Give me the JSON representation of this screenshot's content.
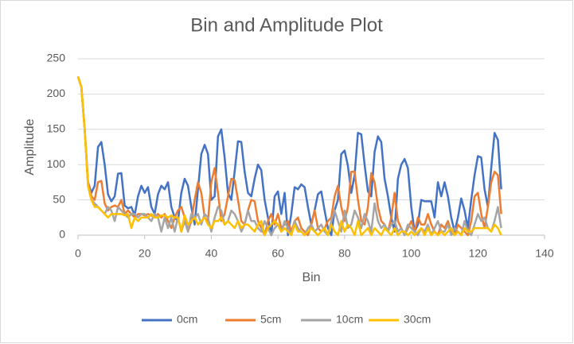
{
  "chart_data": {
    "type": "line",
    "title": "Bin and Amplitude Plot",
    "x_label": "Bin",
    "y_label": "Amplitude",
    "x": [
      0,
      1,
      2,
      3,
      4,
      5,
      6,
      7,
      8,
      9,
      10,
      11,
      12,
      13,
      14,
      15,
      16,
      17,
      18,
      19,
      20,
      21,
      22,
      23,
      24,
      25,
      26,
      27,
      28,
      29,
      30,
      31,
      32,
      33,
      34,
      35,
      36,
      37,
      38,
      39,
      40,
      41,
      42,
      43,
      44,
      45,
      46,
      47,
      48,
      49,
      50,
      51,
      52,
      53,
      54,
      55,
      56,
      57,
      58,
      59,
      60,
      61,
      62,
      63,
      64,
      65,
      66,
      67,
      68,
      69,
      70,
      71,
      72,
      73,
      74,
      75,
      76,
      77,
      78,
      79,
      80,
      81,
      82,
      83,
      84,
      85,
      86,
      87,
      88,
      89,
      90,
      91,
      92,
      93,
      94,
      95,
      96,
      97,
      98,
      99,
      100,
      101,
      102,
      103,
      104,
      105,
      106,
      107,
      108,
      109,
      110,
      111,
      112,
      113,
      114,
      115,
      116,
      117,
      118,
      119,
      120,
      121,
      122,
      123,
      124,
      125,
      126,
      127
    ],
    "series": [
      {
        "name": "0cm",
        "color": "#4472C4",
        "values": [
          225,
          210,
          150,
          75,
          60,
          70,
          125,
          132,
          100,
          58,
          48,
          55,
          87,
          88,
          42,
          38,
          40,
          28,
          55,
          70,
          60,
          68,
          40,
          30,
          58,
          70,
          65,
          75,
          40,
          25,
          20,
          60,
          80,
          70,
          40,
          15,
          65,
          115,
          128,
          115,
          50,
          55,
          140,
          150,
          110,
          60,
          50,
          90,
          133,
          132,
          90,
          60,
          55,
          80,
          100,
          92,
          50,
          25,
          0,
          55,
          62,
          30,
          60,
          0,
          30,
          68,
          65,
          72,
          68,
          40,
          15,
          35,
          58,
          62,
          35,
          10,
          0,
          35,
          50,
          115,
          120,
          98,
          60,
          85,
          145,
          143,
          100,
          62,
          55,
          118,
          140,
          132,
          80,
          55,
          25,
          5,
          80,
          100,
          108,
          95,
          40,
          5,
          15,
          50,
          48,
          48,
          48,
          25,
          75,
          55,
          75,
          55,
          25,
          5,
          25,
          52,
          35,
          10,
          50,
          85,
          112,
          110,
          65,
          40,
          95,
          145,
          135,
          65
        ]
      },
      {
        "name": "5cm",
        "color": "#ED7D31",
        "values": [
          225,
          210,
          150,
          75,
          55,
          50,
          75,
          77,
          45,
          35,
          40,
          42,
          40,
          50,
          30,
          35,
          30,
          25,
          30,
          30,
          28,
          30,
          28,
          25,
          30,
          25,
          30,
          20,
          10,
          25,
          35,
          40,
          25,
          5,
          20,
          50,
          75,
          60,
          25,
          20,
          75,
          95,
          60,
          20,
          30,
          55,
          80,
          78,
          50,
          20,
          15,
          35,
          50,
          48,
          20,
          10,
          0,
          20,
          30,
          15,
          30,
          10,
          15,
          20,
          5,
          20,
          25,
          10,
          5,
          0,
          15,
          35,
          10,
          5,
          10,
          20,
          25,
          55,
          70,
          40,
          20,
          40,
          90,
          90,
          50,
          20,
          15,
          40,
          88,
          75,
          40,
          20,
          15,
          5,
          25,
          60,
          20,
          10,
          0,
          10,
          20,
          5,
          25,
          15,
          15,
          30,
          15,
          5,
          0,
          15,
          10,
          20,
          5,
          0,
          15,
          10,
          5,
          0,
          20,
          55,
          60,
          30,
          10,
          40,
          75,
          90,
          85,
          30
        ]
      },
      {
        "name": "10cm",
        "color": "#A5A5A5",
        "values": [
          225,
          210,
          150,
          70,
          50,
          45,
          40,
          35,
          30,
          40,
          35,
          20,
          40,
          35,
          30,
          25,
          30,
          30,
          25,
          30,
          30,
          25,
          20,
          30,
          25,
          5,
          25,
          10,
          25,
          5,
          25,
          5,
          20,
          5,
          30,
          25,
          30,
          15,
          30,
          25,
          5,
          25,
          40,
          35,
          15,
          20,
          35,
          30,
          20,
          5,
          15,
          35,
          20,
          20,
          10,
          5,
          20,
          10,
          0,
          10,
          15,
          5,
          20,
          10,
          0,
          20,
          10,
          5,
          0,
          10,
          15,
          5,
          10,
          15,
          5,
          0,
          20,
          35,
          20,
          5,
          35,
          10,
          15,
          35,
          25,
          10,
          30,
          20,
          5,
          45,
          20,
          10,
          15,
          5,
          15,
          20,
          5,
          10,
          0,
          15,
          10,
          5,
          0,
          10,
          5,
          15,
          0,
          10,
          20,
          5,
          5,
          15,
          0,
          10,
          5,
          0,
          20,
          5,
          0,
          15,
          30,
          20,
          25,
          10,
          5,
          20,
          40,
          10
        ]
      },
      {
        "name": "30cm",
        "color": "#FFC000",
        "values": [
          225,
          210,
          150,
          70,
          50,
          40,
          40,
          35,
          30,
          25,
          30,
          30,
          30,
          30,
          28,
          30,
          10,
          25,
          20,
          25,
          25,
          25,
          30,
          25,
          25,
          28,
          28,
          25,
          28,
          25,
          25,
          5,
          28,
          15,
          20,
          25,
          15,
          20,
          25,
          15,
          10,
          20,
          20,
          25,
          15,
          20,
          15,
          10,
          20,
          10,
          15,
          15,
          10,
          5,
          15,
          20,
          0,
          10,
          15,
          20,
          15,
          5,
          10,
          5,
          0,
          15,
          5,
          5,
          0,
          5,
          10,
          5,
          0,
          5,
          10,
          0,
          15,
          5,
          0,
          20,
          5,
          15,
          10,
          0,
          20,
          0,
          5,
          10,
          0,
          10,
          5,
          0,
          10,
          5,
          0,
          10,
          0,
          5,
          5,
          0,
          5,
          0,
          5,
          10,
          0,
          10,
          0,
          5,
          0,
          5,
          0,
          5,
          10,
          0,
          5,
          0,
          10,
          5,
          5,
          10,
          10,
          10,
          10,
          10,
          5,
          15,
          10,
          0
        ]
      }
    ],
    "xlim": [
      0,
      140
    ],
    "ylim": [
      0,
      250
    ],
    "xticks": [
      0,
      20,
      40,
      60,
      80,
      100,
      120,
      140
    ],
    "yticks": [
      0,
      50,
      100,
      150,
      200,
      250
    ],
    "grid": true,
    "legend": "bottom"
  }
}
